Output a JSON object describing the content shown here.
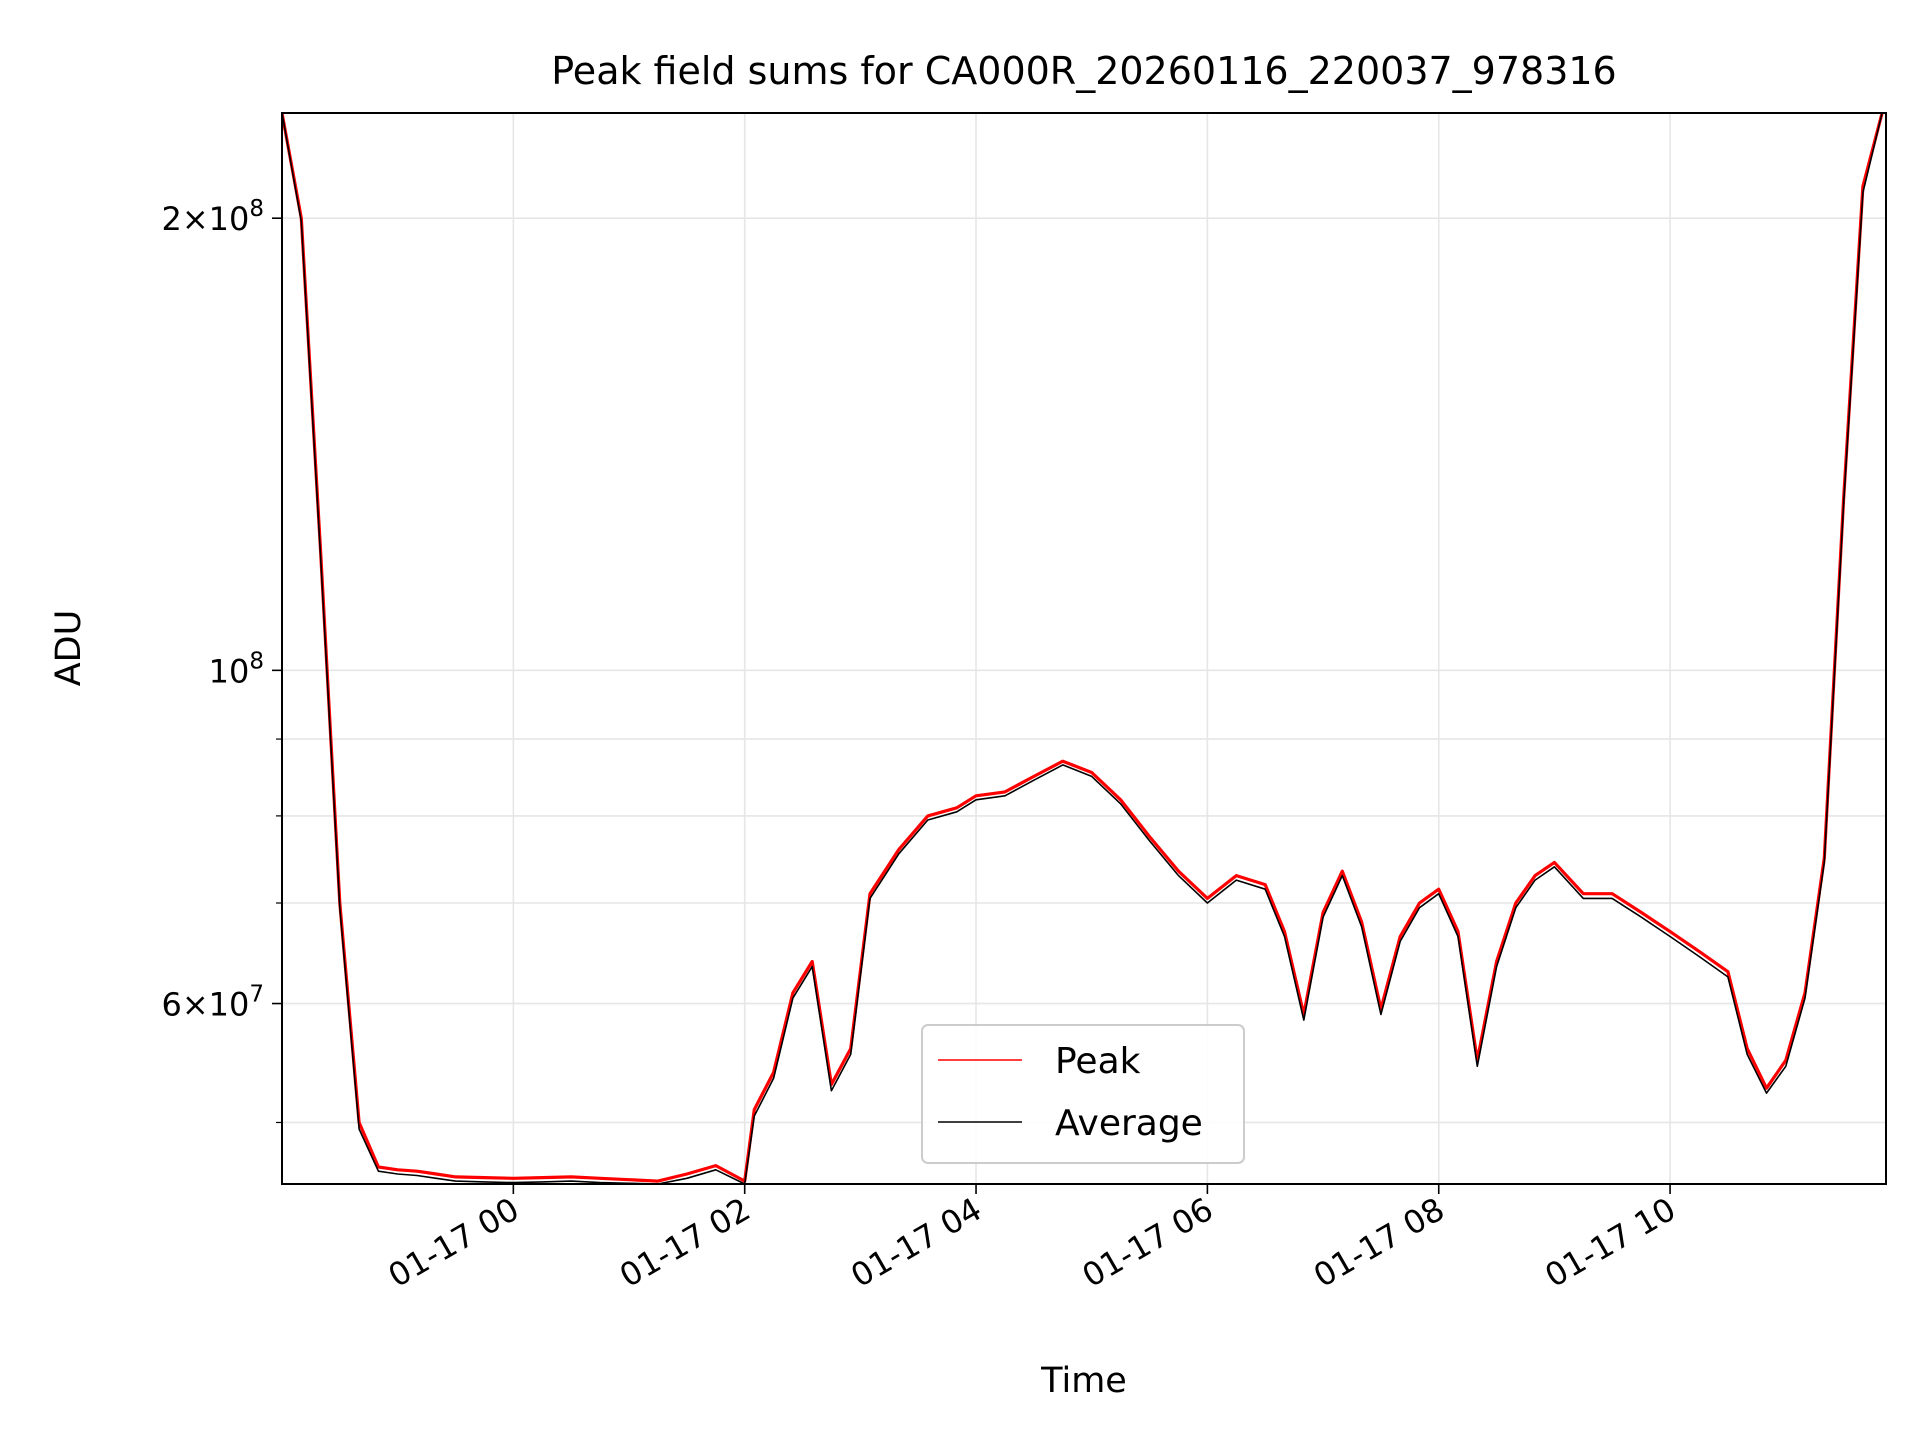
{
  "chart_data": {
    "type": "line",
    "title": "Peak field sums for CA000R_20260116_220037_978316",
    "xlabel": "Time",
    "ylabel": "ADU",
    "y_scale": "log",
    "ylim": [
      45500000,
      235000000
    ],
    "xlim": [
      "2026-01-16 22:00",
      "2026-01-17 11:52"
    ],
    "grid": true,
    "legend_position": "lower center",
    "x_ticks": [
      {
        "x": "2026-01-17 00:00",
        "label": "01-17 00"
      },
      {
        "x": "2026-01-17 02:00",
        "label": "01-17 02"
      },
      {
        "x": "2026-01-17 04:00",
        "label": "01-17 04"
      },
      {
        "x": "2026-01-17 06:00",
        "label": "01-17 06"
      },
      {
        "x": "2026-01-17 08:00",
        "label": "01-17 08"
      },
      {
        "x": "2026-01-17 10:00",
        "label": "01-17 10"
      }
    ],
    "y_major_ticks": [
      {
        "y": 60000000,
        "mantissa": "6",
        "base": "10",
        "exponent": "7"
      },
      {
        "y": 100000000,
        "mantissa": "",
        "base": "10",
        "exponent": "8"
      },
      {
        "y": 200000000,
        "mantissa": "2",
        "base": "10",
        "exponent": "8"
      }
    ],
    "y_minor_ticks": [
      50000000,
      70000000,
      80000000,
      90000000
    ],
    "series": [
      {
        "name": "Peak",
        "color": "#ff0000",
        "x": [
          "2026-01-16 22:00",
          "2026-01-16 22:10",
          "2026-01-16 22:20",
          "2026-01-16 22:30",
          "2026-01-16 22:40",
          "2026-01-16 22:50",
          "2026-01-16 23:00",
          "2026-01-16 23:10",
          "2026-01-16 23:20",
          "2026-01-16 23:30",
          "2026-01-16 23:45",
          "2026-01-17 00:00",
          "2026-01-17 00:15",
          "2026-01-17 00:30",
          "2026-01-17 00:45",
          "2026-01-17 01:00",
          "2026-01-17 01:15",
          "2026-01-17 01:30",
          "2026-01-17 01:45",
          "2026-01-17 02:00",
          "2026-01-17 02:05",
          "2026-01-17 02:15",
          "2026-01-17 02:25",
          "2026-01-17 02:35",
          "2026-01-17 02:45",
          "2026-01-17 02:55",
          "2026-01-17 03:05",
          "2026-01-17 03:20",
          "2026-01-17 03:35",
          "2026-01-17 03:50",
          "2026-01-17 04:00",
          "2026-01-17 04:15",
          "2026-01-17 04:30",
          "2026-01-17 04:45",
          "2026-01-17 05:00",
          "2026-01-17 05:15",
          "2026-01-17 05:30",
          "2026-01-17 05:45",
          "2026-01-17 06:00",
          "2026-01-17 06:15",
          "2026-01-17 06:30",
          "2026-01-17 06:40",
          "2026-01-17 06:50",
          "2026-01-17 07:00",
          "2026-01-17 07:10",
          "2026-01-17 07:20",
          "2026-01-17 07:30",
          "2026-01-17 07:40",
          "2026-01-17 07:50",
          "2026-01-17 08:00",
          "2026-01-17 08:10",
          "2026-01-17 08:20",
          "2026-01-17 08:30",
          "2026-01-17 08:40",
          "2026-01-17 08:50",
          "2026-01-17 09:00",
          "2026-01-17 09:15",
          "2026-01-17 09:30",
          "2026-01-17 09:45",
          "2026-01-17 10:00",
          "2026-01-17 10:15",
          "2026-01-17 10:30",
          "2026-01-17 10:40",
          "2026-01-17 10:50",
          "2026-01-17 11:00",
          "2026-01-17 11:10",
          "2026-01-17 11:20",
          "2026-01-17 11:30",
          "2026-01-17 11:40",
          "2026-01-17 11:50"
        ],
        "values": [
          235000000,
          200000000,
          120000000,
          70000000,
          50000000,
          46700000,
          46500000,
          46400000,
          46200000,
          46000000,
          45950000,
          45900000,
          45950000,
          46000000,
          45900000,
          45800000,
          45700000,
          46200000,
          46800000,
          45700000,
          51000000,
          54000000,
          61000000,
          64000000,
          53000000,
          56000000,
          71000000,
          76000000,
          80000000,
          81000000,
          82500000,
          83000000,
          85000000,
          87000000,
          85500000,
          82000000,
          77500000,
          73500000,
          70500000,
          73000000,
          72000000,
          67000000,
          59000000,
          69000000,
          73500000,
          68000000,
          59500000,
          66500000,
          70000000,
          71500000,
          67000000,
          55000000,
          64000000,
          70000000,
          73000000,
          74500000,
          71000000,
          71000000,
          69000000,
          67000000,
          65000000,
          63000000,
          56000000,
          52700000,
          55000000,
          61000000,
          75000000,
          130000000,
          210000000,
          235000000
        ]
      },
      {
        "name": "Average",
        "color": "#000000",
        "x": [
          "2026-01-16 22:00",
          "2026-01-16 22:10",
          "2026-01-16 22:20",
          "2026-01-16 22:30",
          "2026-01-16 22:40",
          "2026-01-16 22:50",
          "2026-01-16 23:00",
          "2026-01-16 23:10",
          "2026-01-16 23:20",
          "2026-01-16 23:30",
          "2026-01-16 23:45",
          "2026-01-17 00:00",
          "2026-01-17 00:15",
          "2026-01-17 00:30",
          "2026-01-17 00:45",
          "2026-01-17 01:00",
          "2026-01-17 01:15",
          "2026-01-17 01:30",
          "2026-01-17 01:45",
          "2026-01-17 02:00",
          "2026-01-17 02:05",
          "2026-01-17 02:15",
          "2026-01-17 02:25",
          "2026-01-17 02:35",
          "2026-01-17 02:45",
          "2026-01-17 02:55",
          "2026-01-17 03:05",
          "2026-01-17 03:20",
          "2026-01-17 03:35",
          "2026-01-17 03:50",
          "2026-01-17 04:00",
          "2026-01-17 04:15",
          "2026-01-17 04:30",
          "2026-01-17 04:45",
          "2026-01-17 05:00",
          "2026-01-17 05:15",
          "2026-01-17 05:30",
          "2026-01-17 05:45",
          "2026-01-17 06:00",
          "2026-01-17 06:15",
          "2026-01-17 06:30",
          "2026-01-17 06:40",
          "2026-01-17 06:50",
          "2026-01-17 07:00",
          "2026-01-17 07:10",
          "2026-01-17 07:20",
          "2026-01-17 07:30",
          "2026-01-17 07:40",
          "2026-01-17 07:50",
          "2026-01-17 08:00",
          "2026-01-17 08:10",
          "2026-01-17 08:20",
          "2026-01-17 08:30",
          "2026-01-17 08:40",
          "2026-01-17 08:50",
          "2026-01-17 09:00",
          "2026-01-17 09:15",
          "2026-01-17 09:30",
          "2026-01-17 09:45",
          "2026-01-17 10:00",
          "2026-01-17 10:15",
          "2026-01-17 10:30",
          "2026-01-17 10:40",
          "2026-01-17 10:50",
          "2026-01-17 11:00",
          "2026-01-17 11:10",
          "2026-01-17 11:20",
          "2026-01-17 11:30",
          "2026-01-17 11:40",
          "2026-01-17 11:50"
        ],
        "values": [
          235000000,
          199000000,
          119000000,
          69500000,
          49500000,
          46400000,
          46200000,
          46100000,
          45900000,
          45700000,
          45650000,
          45600000,
          45650000,
          45700000,
          45600000,
          45550000,
          45500000,
          45900000,
          46500000,
          45500000,
          50500000,
          53500000,
          60500000,
          63500000,
          52500000,
          55500000,
          70500000,
          75500000,
          79500000,
          80500000,
          82000000,
          82500000,
          84500000,
          86500000,
          85000000,
          81500000,
          77000000,
          73000000,
          70000000,
          72500000,
          71500000,
          66500000,
          58500000,
          68500000,
          73000000,
          67500000,
          59000000,
          66000000,
          69500000,
          71000000,
          66500000,
          54500000,
          63500000,
          69500000,
          72500000,
          74000000,
          70500000,
          70500000,
          68500000,
          66500000,
          64500000,
          62500000,
          55500000,
          52300000,
          54500000,
          60500000,
          74500000,
          129000000,
          208000000,
          235000000
        ]
      }
    ]
  }
}
